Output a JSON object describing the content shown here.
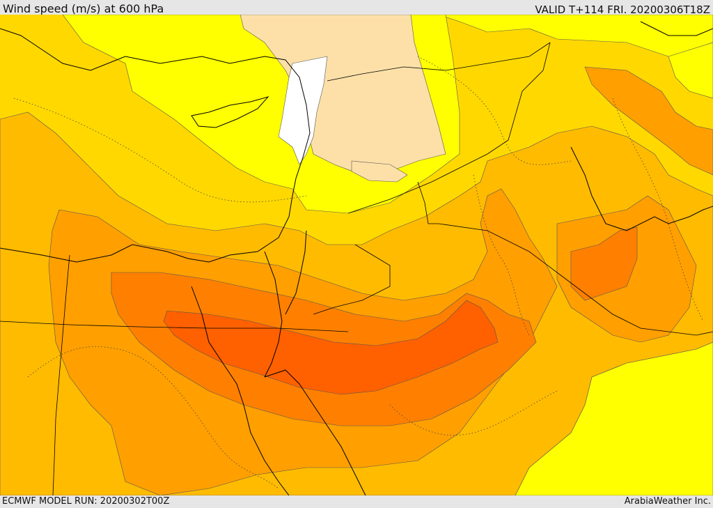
{
  "header": {
    "title": "Wind speed (m/s) at 600 hPa",
    "valid": "VALID T+114 FRI. 20200306T18Z"
  },
  "footer": {
    "model_run": "ECMWF MODEL RUN: 20200302T00Z",
    "credit": "ArabiaWeather Inc."
  },
  "palette": {
    "calm": "#ffffff",
    "light": "#fde0a8",
    "yellow": "#ffff00",
    "gold": "#ffd800",
    "amber": "#ffbb00",
    "orange": "#ff9f00",
    "deep_orange": "#ff8000",
    "red_orange": "#ff6000"
  }
}
